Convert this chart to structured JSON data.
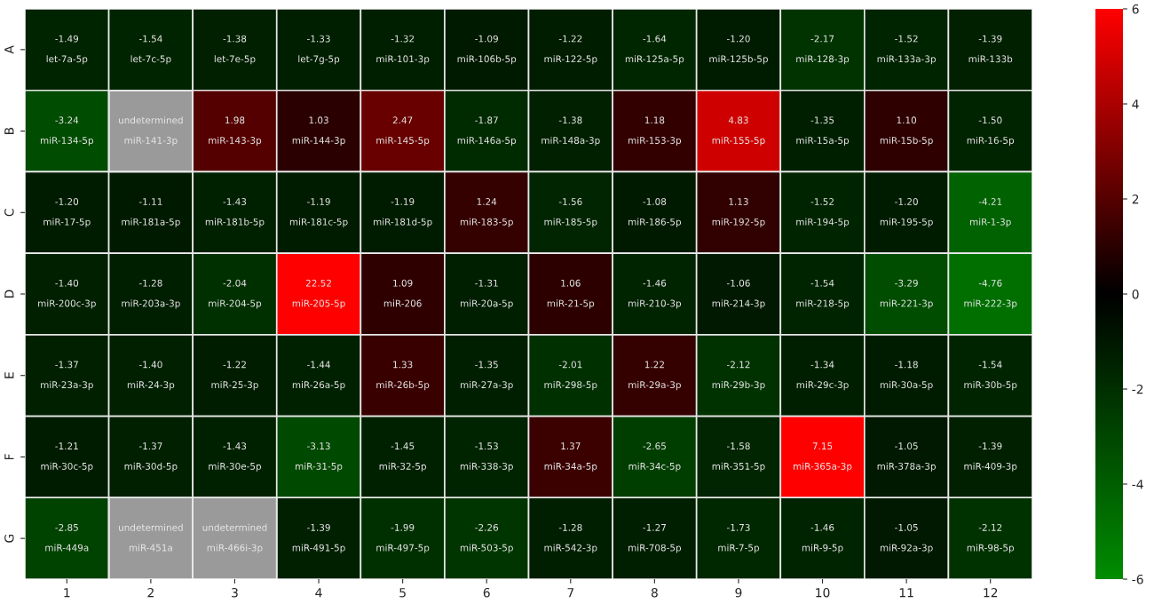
{
  "chart_data": {
    "type": "heatmap",
    "categories": [
      "1",
      "2",
      "3",
      "4",
      "5",
      "6",
      "7",
      "8",
      "9",
      "10",
      "11",
      "12"
    ],
    "y_categories": [
      "A",
      "B",
      "C",
      "D",
      "E",
      "F",
      "G"
    ],
    "cells": [
      [
        -1.49,
        -1.54,
        -1.38,
        -1.33,
        -1.32,
        -1.09,
        -1.22,
        -1.64,
        -1.2,
        -2.17,
        -1.52,
        -1.39
      ],
      [
        -3.24,
        null,
        1.98,
        1.03,
        2.47,
        -1.87,
        -1.38,
        1.18,
        4.83,
        -1.35,
        1.1,
        -1.5
      ],
      [
        -1.2,
        -1.11,
        -1.43,
        -1.19,
        -1.19,
        1.24,
        -1.56,
        -1.08,
        1.13,
        -1.52,
        -1.2,
        -4.21
      ],
      [
        -1.4,
        -1.28,
        -2.04,
        22.52,
        1.09,
        -1.31,
        1.06,
        -1.46,
        -1.06,
        -1.54,
        -3.29,
        -4.76
      ],
      [
        -1.37,
        -1.4,
        -1.22,
        -1.44,
        1.33,
        -1.35,
        -2.01,
        1.22,
        -2.12,
        -1.34,
        -1.18,
        -1.54
      ],
      [
        -1.21,
        -1.37,
        -1.43,
        -3.13,
        -1.45,
        -1.53,
        1.37,
        -2.65,
        -1.58,
        7.15,
        -1.05,
        -1.39
      ],
      [
        -2.85,
        null,
        null,
        -1.39,
        -1.99,
        -2.26,
        -1.28,
        -1.27,
        -1.73,
        -1.46,
        -1.05,
        -2.12
      ]
    ],
    "cell_labels": [
      [
        "-1.49\nlet-7a-5p",
        "-1.54\nlet-7c-5p",
        "-1.38\nlet-7e-5p",
        "-1.33\nlet-7g-5p",
        "-1.32\nmiR-101-3p",
        "-1.09\nmiR-106b-5p",
        "-1.22\nmiR-122-5p",
        "-1.64\nmiR-125a-5p",
        "-1.20\nmiR-125b-5p",
        "-2.17\nmiR-128-3p",
        "-1.52\nmiR-133a-3p",
        "-1.39\nmiR-133b"
      ],
      [
        "-3.24\nmiR-134-5p",
        "undetermined\nmiR-141-3p",
        "1.98\nmiR-143-3p",
        "1.03\nmiR-144-3p",
        "2.47\nmiR-145-5p",
        "-1.87\nmiR-146a-5p",
        "-1.38\nmiR-148a-3p",
        "1.18\nmiR-153-3p",
        "4.83\nmiR-155-5p",
        "-1.35\nmiR-15a-5p",
        "1.10\nmiR-15b-5p",
        "-1.50\nmiR-16-5p"
      ],
      [
        "-1.20\nmiR-17-5p",
        "-1.11\nmiR-181a-5p",
        "-1.43\nmiR-181b-5p",
        "-1.19\nmiR-181c-5p",
        "-1.19\nmiR-181d-5p",
        "1.24\nmiR-183-5p",
        "-1.56\nmiR-185-5p",
        "-1.08\nmiR-186-5p",
        "1.13\nmiR-192-5p",
        "-1.52\nmiR-194-5p",
        "-1.20\nmiR-195-5p",
        "-4.21\nmiR-1-3p"
      ],
      [
        "-1.40\nmiR-200c-3p",
        "-1.28\nmiR-203a-3p",
        "-2.04\nmiR-204-5p",
        "22.52\nmiR-205-5p",
        "1.09\nmiR-206",
        "-1.31\nmiR-20a-5p",
        "1.06\nmiR-21-5p",
        "-1.46\nmiR-210-3p",
        "-1.06\nmiR-214-3p",
        "-1.54\nmiR-218-5p",
        "-3.29\nmiR-221-3p",
        "-4.76\nmiR-222-3p"
      ],
      [
        "-1.37\nmiR-23a-3p",
        "-1.40\nmiR-24-3p",
        "-1.22\nmiR-25-3p",
        "-1.44\nmiR-26a-5p",
        "1.33\nmiR-26b-5p",
        "-1.35\nmiR-27a-3p",
        "-2.01\nmiR-298-5p",
        "1.22\nmiR-29a-3p",
        "-2.12\nmiR-29b-3p",
        "-1.34\nmiR-29c-3p",
        "-1.18\nmiR-30a-5p",
        "-1.54\nmiR-30b-5p"
      ],
      [
        "-1.21\nmiR-30c-5p",
        "-1.37\nmiR-30d-5p",
        "-1.43\nmiR-30e-5p",
        "-3.13\nmiR-31-5p",
        "-1.45\nmiR-32-5p",
        "-1.53\nmiR-338-3p",
        "1.37\nmiR-34a-5p",
        "-2.65\nmiR-34c-5p",
        "-1.58\nmiR-351-5p",
        "7.15\nmiR-365a-3p",
        "-1.05\nmiR-378a-3p",
        "-1.39\nmiR-409-3p"
      ],
      [
        "-2.85\nmiR-449a",
        "undetermined\nmiR-451a",
        "undetermined\nmiR-466i-3p",
        "-1.39\nmiR-491-5p",
        "-1.99\nmiR-497-5p",
        "-2.26\nmiR-503-5p",
        "-1.28\nmiR-542-3p",
        "-1.27\nmiR-708-5p",
        "-1.73\nmiR-7-5p",
        "-1.46\nmiR-9-5p",
        "-1.05\nmiR-92a-3p",
        "-2.12\nmiR-98-5p"
      ]
    ],
    "clim": [
      -6,
      6
    ],
    "cticks": [
      -6,
      -4,
      -2,
      0,
      2,
      4,
      6
    ]
  }
}
